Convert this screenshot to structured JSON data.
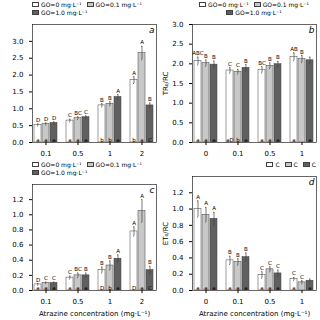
{
  "chart_data": [
    {
      "type": "bar",
      "title": "a",
      "categories": [
        "0.1",
        "0.5",
        "1",
        "2"
      ],
      "series": [
        {
          "name": "GO=0 mg·L⁻¹",
          "color": "white",
          "values": [
            0.52,
            0.65,
            1.1,
            1.85
          ],
          "errors": [
            0.03,
            0.04,
            0.05,
            0.1
          ],
          "upper_letters": [
            "D",
            "C",
            "B",
            "A"
          ],
          "lower_letters": [
            "a",
            "a",
            "b",
            "b"
          ]
        },
        {
          "name": "GO=0.1 mg·L⁻¹",
          "color": "#c8c8c8",
          "values": [
            0.55,
            0.72,
            1.15,
            2.65
          ],
          "errors": [
            0.03,
            0.04,
            0.06,
            0.2
          ],
          "upper_letters": [
            "D",
            "BC",
            "B",
            "A"
          ],
          "lower_letters": [
            "a",
            "a",
            "b",
            "a"
          ]
        },
        {
          "name": "GO=1.0 mg·L⁻¹",
          "color": "#606060",
          "values": [
            0.58,
            0.75,
            1.35,
            1.1
          ],
          "errors": [
            0.03,
            0.04,
            0.07,
            0.07
          ],
          "upper_letters": [
            "D",
            "C",
            "A",
            "B"
          ],
          "lower_letters": [
            "a",
            "a",
            "a",
            "C"
          ]
        }
      ],
      "ylim": [
        0,
        3.5
      ],
      "yticks": [
        {
          "value": 0,
          "label": "0.0"
        },
        0.5,
        {
          "value": 1,
          "label": "1.0"
        },
        1.5,
        {
          "value": 2,
          "label": "2.0"
        },
        2.5,
        {
          "value": 3,
          "label": "3.0"
        }
      ],
      "legend": "upper left"
    },
    {
      "type": "bar",
      "title": "b",
      "y_label": "TR₀/RC",
      "categories": [
        "0",
        "0.1",
        "0.5",
        "1"
      ],
      "series": [
        {
          "name": "GO=0 mg·L⁻¹",
          "color": "white",
          "values": [
            2.07,
            1.83,
            1.85,
            2.18
          ],
          "errors": [
            0.1,
            0.07,
            0.08,
            0.1
          ],
          "upper_letters": [
            "ABC",
            "C",
            "BC",
            "AB"
          ],
          "lower_letters": [
            "a",
            "aD",
            "a",
            "a"
          ]
        },
        {
          "name": "GO=0.1 mg·L⁻¹",
          "color": "#c8c8c8",
          "values": [
            2.02,
            1.8,
            1.95,
            2.12
          ],
          "errors": [
            0.08,
            0.06,
            0.07,
            0.09
          ],
          "upper_letters": [
            "B",
            "C",
            "B",
            "B"
          ],
          "lower_letters": [
            "a",
            "b",
            "a",
            null
          ]
        },
        {
          "name": "GO=1.0 mg·L⁻¹",
          "color": "#606060",
          "values": [
            1.98,
            1.9,
            1.99,
            2.09
          ],
          "errors": [
            0.09,
            0.08,
            0.07,
            0.08
          ],
          "upper_letters": [
            "B",
            "B",
            "B",
            null
          ],
          "lower_letters": [
            "a",
            "a",
            "a",
            "a"
          ]
        }
      ],
      "ylim": [
        0,
        3.0
      ],
      "yticks": [
        {
          "value": 0,
          "label": "0.0"
        },
        0.5,
        {
          "value": 1,
          "label": "1.0"
        },
        1.5,
        {
          "value": 2,
          "label": "2.0"
        },
        2.5,
        {
          "value": 3,
          "label": "3.0"
        }
      ],
      "legend": "upper center"
    },
    {
      "type": "bar",
      "title": "c",
      "x_label": "Atrazine concentration (mg·L⁻¹)",
      "categories": [
        "0.1",
        "0.5",
        "1",
        "2"
      ],
      "series": [
        {
          "name": "GO=0 mg·L⁻¹",
          "color": "white",
          "values": [
            0.08,
            0.17,
            0.27,
            0.78
          ],
          "errors": [
            0.01,
            0.02,
            0.04,
            0.06
          ],
          "upper_letters": [
            "D",
            "C",
            "B",
            "A"
          ],
          "lower_letters": [
            "a",
            "a",
            "D",
            "D"
          ]
        },
        {
          "name": "GO=0.1 mg·L⁻¹",
          "color": "#c8c8c8",
          "values": [
            0.1,
            0.2,
            0.33,
            1.05
          ],
          "errors": [
            0.01,
            0.03,
            0.06,
            0.15
          ],
          "upper_letters": [
            "C",
            "BC",
            "B",
            "A"
          ],
          "lower_letters": [
            "a",
            "a",
            "b",
            "a"
          ]
        },
        {
          "name": "GO=1.0 mg·L⁻¹",
          "color": "#606060",
          "values": [
            0.1,
            0.2,
            0.42,
            0.27
          ],
          "errors": [
            0.01,
            0.03,
            0.05,
            0.05
          ],
          "upper_letters": [
            "C",
            "B",
            "A",
            "B"
          ],
          "lower_letters": [
            "a",
            "a",
            "a",
            "C"
          ]
        }
      ],
      "ylim": [
        0,
        1.4
      ],
      "yticks": [
        {
          "value": 0,
          "label": "0.0"
        },
        0.2,
        0.4,
        0.6,
        0.8,
        {
          "value": 1,
          "label": "1.0"
        },
        1.2
      ],
      "legend": "upper left"
    },
    {
      "type": "bar",
      "title": "d",
      "x_label": "Atrazine concentration (mg·L⁻¹)",
      "y_label": "ET₀/RC",
      "categories": [
        "0",
        "0.1",
        "0.5",
        "1"
      ],
      "series": [
        {
          "name": "C",
          "color": "white",
          "values": [
            1.0,
            0.37,
            0.19,
            0.14
          ],
          "errors": [
            0.1,
            0.05,
            0.04,
            0.02
          ],
          "upper_letters": [
            "A",
            "B",
            "C",
            "C"
          ],
          "lower_letters": [
            "a",
            "a",
            "a",
            "a"
          ]
        },
        {
          "name": "C",
          "color": "#c8c8c8",
          "values": [
            0.93,
            0.35,
            0.26,
            0.1
          ],
          "errors": [
            0.09,
            0.04,
            0.03,
            0.02
          ],
          "upper_letters": [
            "A",
            "B",
            "C",
            "C"
          ],
          "lower_letters": [
            "a",
            "a",
            "a",
            null
          ]
        },
        {
          "name": "C",
          "color": "#606060",
          "values": [
            0.88,
            0.41,
            0.21,
            0.12
          ],
          "errors": [
            0.08,
            0.05,
            0.04,
            0.02
          ],
          "upper_letters": [
            "A",
            "B",
            "C",
            null
          ],
          "lower_letters": [
            "a",
            "a",
            "a",
            "a"
          ]
        }
      ],
      "ylim": [
        0,
        1.4
      ],
      "yticks": [
        {
          "value": 0,
          "label": "0.0"
        },
        0.2,
        0.4,
        0.6,
        0.8,
        {
          "value": 1,
          "label": "1.0"
        },
        1.2
      ],
      "legend": "upper right"
    }
  ]
}
